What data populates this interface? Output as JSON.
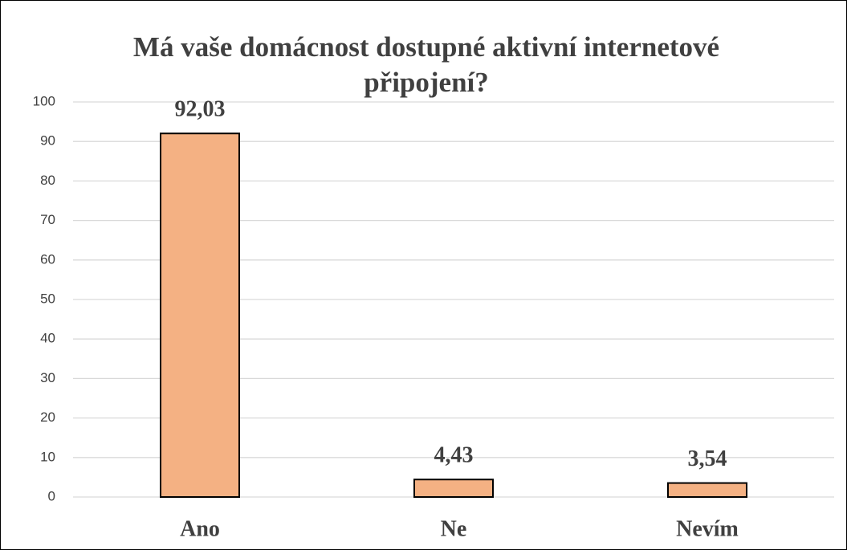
{
  "chart_data": {
    "type": "bar",
    "title": "Má vaše domácnost dostupné aktivní internetové připojení?",
    "categories": [
      "Ano",
      "Ne",
      "Nevím"
    ],
    "values": [
      92.03,
      4.43,
      3.54
    ],
    "value_labels": [
      "92,03",
      "4,43",
      "3,54"
    ],
    "color": "#f4b183",
    "ylim": [
      0,
      100
    ],
    "yticks": [
      0,
      10,
      20,
      30,
      40,
      50,
      60,
      70,
      80,
      90,
      100
    ],
    "grid": true
  }
}
